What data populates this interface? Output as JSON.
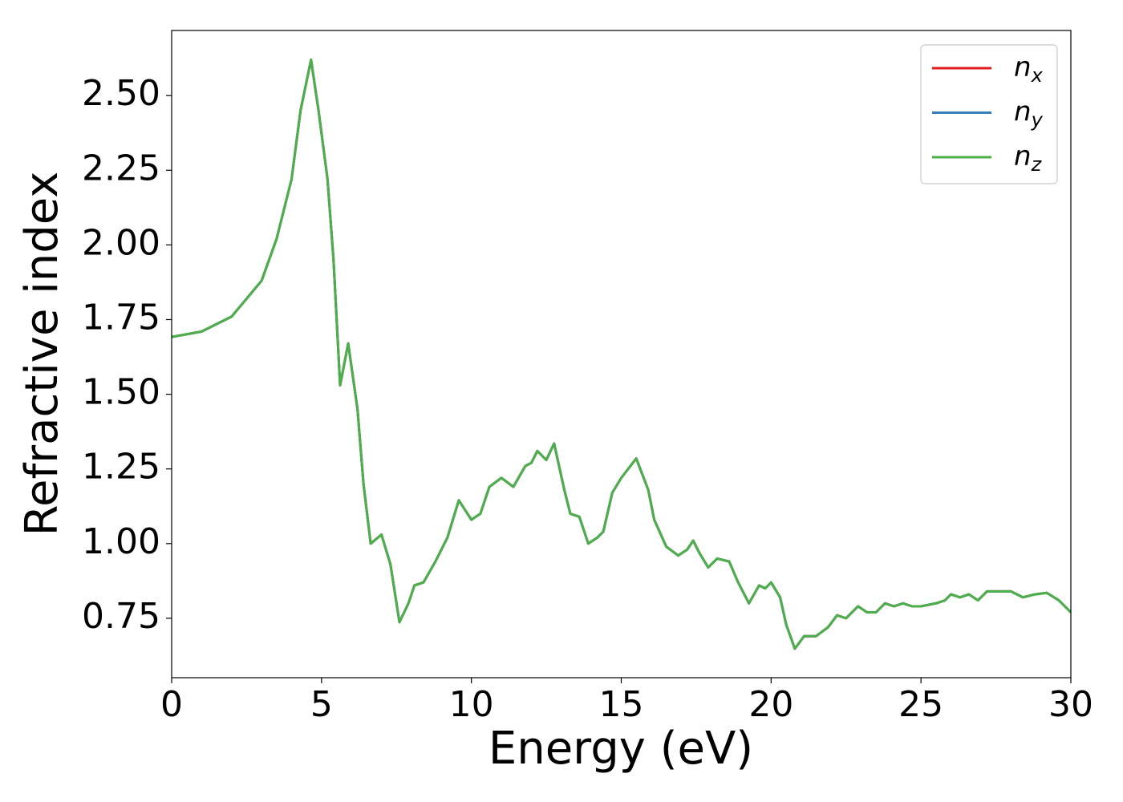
{
  "chart_data": {
    "type": "line",
    "xlabel": "Energy (eV)",
    "ylabel": "Refractive index",
    "xlim": [
      0,
      30
    ],
    "ylim": [
      0.551,
      2.718
    ],
    "xticks": [
      0,
      5,
      10,
      15,
      20,
      25,
      30
    ],
    "yticks": [
      0.75,
      {
        "value": 1.0,
        "label": "1.00"
      },
      1.25,
      {
        "value": 1.5,
        "label": "1.50"
      },
      1.75,
      {
        "value": 2.0,
        "label": "2.00"
      },
      2.25,
      {
        "value": 2.5,
        "label": "2.50"
      }
    ],
    "legend": "upper right",
    "x": [
      0,
      1,
      2,
      3,
      3.5,
      4,
      4.3,
      4.65,
      4.9,
      5.2,
      5.4,
      5.62,
      5.89,
      6.2,
      6.4,
      6.64,
      7.0,
      7.3,
      7.6,
      7.9,
      8.1,
      8.4,
      8.8,
      9.2,
      9.58,
      10.0,
      10.3,
      10.6,
      11.0,
      11.4,
      11.8,
      12.0,
      12.2,
      12.5,
      12.76,
      13.1,
      13.3,
      13.6,
      13.9,
      14.2,
      14.4,
      14.7,
      15.0,
      15.5,
      15.9,
      16.1,
      16.5,
      16.9,
      17.2,
      17.4,
      17.6,
      17.9,
      18.2,
      18.6,
      18.9,
      19.26,
      19.6,
      19.8,
      20.0,
      20.3,
      20.5,
      20.79,
      21.1,
      21.5,
      21.9,
      22.2,
      22.5,
      22.9,
      23.2,
      23.5,
      23.8,
      24.1,
      24.4,
      24.7,
      25.0,
      25.5,
      25.8,
      26.0,
      26.3,
      26.6,
      26.9,
      27.2,
      27.6,
      28.0,
      28.4,
      28.8,
      29.2,
      29.6,
      30.0
    ],
    "series": [
      {
        "name": "n_x",
        "color": "#e41a1c",
        "values": [
          1.692,
          1.71,
          1.76,
          1.88,
          2.02,
          2.22,
          2.45,
          2.62,
          2.45,
          2.22,
          1.95,
          1.53,
          1.67,
          1.45,
          1.2,
          1.0,
          1.03,
          0.93,
          0.737,
          0.8,
          0.86,
          0.87,
          0.94,
          1.02,
          1.145,
          1.08,
          1.1,
          1.19,
          1.22,
          1.19,
          1.26,
          1.27,
          1.31,
          1.28,
          1.335,
          1.18,
          1.1,
          1.09,
          1.0,
          1.02,
          1.04,
          1.17,
          1.22,
          1.285,
          1.18,
          1.08,
          0.99,
          0.96,
          0.98,
          1.01,
          0.97,
          0.92,
          0.95,
          0.94,
          0.87,
          0.8,
          0.86,
          0.85,
          0.87,
          0.82,
          0.73,
          0.648,
          0.69,
          0.69,
          0.72,
          0.76,
          0.75,
          0.79,
          0.77,
          0.77,
          0.8,
          0.79,
          0.8,
          0.79,
          0.79,
          0.8,
          0.81,
          0.83,
          0.82,
          0.83,
          0.81,
          0.84,
          0.84,
          0.84,
          0.82,
          0.83,
          0.835,
          0.81,
          0.77
        ]
      },
      {
        "name": "n_y",
        "color": "#377eb8",
        "values": [
          1.692,
          1.71,
          1.76,
          1.88,
          2.02,
          2.22,
          2.45,
          2.62,
          2.45,
          2.22,
          1.95,
          1.53,
          1.67,
          1.45,
          1.2,
          1.0,
          1.03,
          0.93,
          0.737,
          0.8,
          0.86,
          0.87,
          0.94,
          1.02,
          1.145,
          1.08,
          1.1,
          1.19,
          1.22,
          1.19,
          1.26,
          1.27,
          1.31,
          1.28,
          1.335,
          1.18,
          1.1,
          1.09,
          1.0,
          1.02,
          1.04,
          1.17,
          1.22,
          1.285,
          1.18,
          1.08,
          0.99,
          0.96,
          0.98,
          1.01,
          0.97,
          0.92,
          0.95,
          0.94,
          0.87,
          0.8,
          0.86,
          0.85,
          0.87,
          0.82,
          0.73,
          0.648,
          0.69,
          0.69,
          0.72,
          0.76,
          0.75,
          0.79,
          0.77,
          0.77,
          0.8,
          0.79,
          0.8,
          0.79,
          0.79,
          0.8,
          0.81,
          0.83,
          0.82,
          0.83,
          0.81,
          0.84,
          0.84,
          0.84,
          0.82,
          0.83,
          0.835,
          0.81,
          0.77
        ]
      },
      {
        "name": "n_z",
        "color": "#4daf4a",
        "values": [
          1.692,
          1.71,
          1.76,
          1.88,
          2.02,
          2.22,
          2.45,
          2.62,
          2.45,
          2.22,
          1.95,
          1.53,
          1.67,
          1.45,
          1.2,
          1.0,
          1.03,
          0.93,
          0.737,
          0.8,
          0.86,
          0.87,
          0.94,
          1.02,
          1.145,
          1.08,
          1.1,
          1.19,
          1.22,
          1.19,
          1.26,
          1.27,
          1.31,
          1.28,
          1.335,
          1.18,
          1.1,
          1.09,
          1.0,
          1.02,
          1.04,
          1.17,
          1.22,
          1.285,
          1.18,
          1.08,
          0.99,
          0.96,
          0.98,
          1.01,
          0.97,
          0.92,
          0.95,
          0.94,
          0.87,
          0.8,
          0.86,
          0.85,
          0.87,
          0.82,
          0.73,
          0.648,
          0.69,
          0.69,
          0.72,
          0.76,
          0.75,
          0.79,
          0.77,
          0.77,
          0.8,
          0.79,
          0.8,
          0.79,
          0.79,
          0.8,
          0.81,
          0.83,
          0.82,
          0.83,
          0.81,
          0.84,
          0.84,
          0.84,
          0.82,
          0.83,
          0.835,
          0.81,
          0.77
        ]
      }
    ]
  }
}
